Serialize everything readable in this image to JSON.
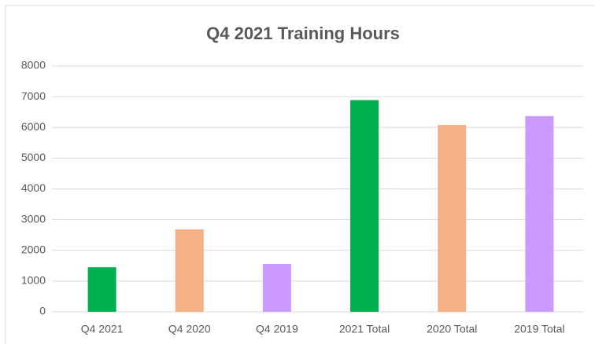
{
  "chart_data": {
    "type": "bar",
    "title": "Q4 2021 Training Hours",
    "categories": [
      "Q4 2021",
      "Q4 2020",
      "Q4 2019",
      "2021 Total",
      "2020 Total",
      "2019 Total"
    ],
    "values": [
      1450,
      2680,
      1560,
      6890,
      6080,
      6370
    ],
    "colors": [
      "#00b050",
      "#f4b183",
      "#cc99ff",
      "#00b050",
      "#f4b183",
      "#cc99ff"
    ],
    "ylim": [
      0,
      8000
    ],
    "yticks": [
      0,
      1000,
      2000,
      3000,
      4000,
      5000,
      6000,
      7000,
      8000
    ],
    "grid": true
  }
}
